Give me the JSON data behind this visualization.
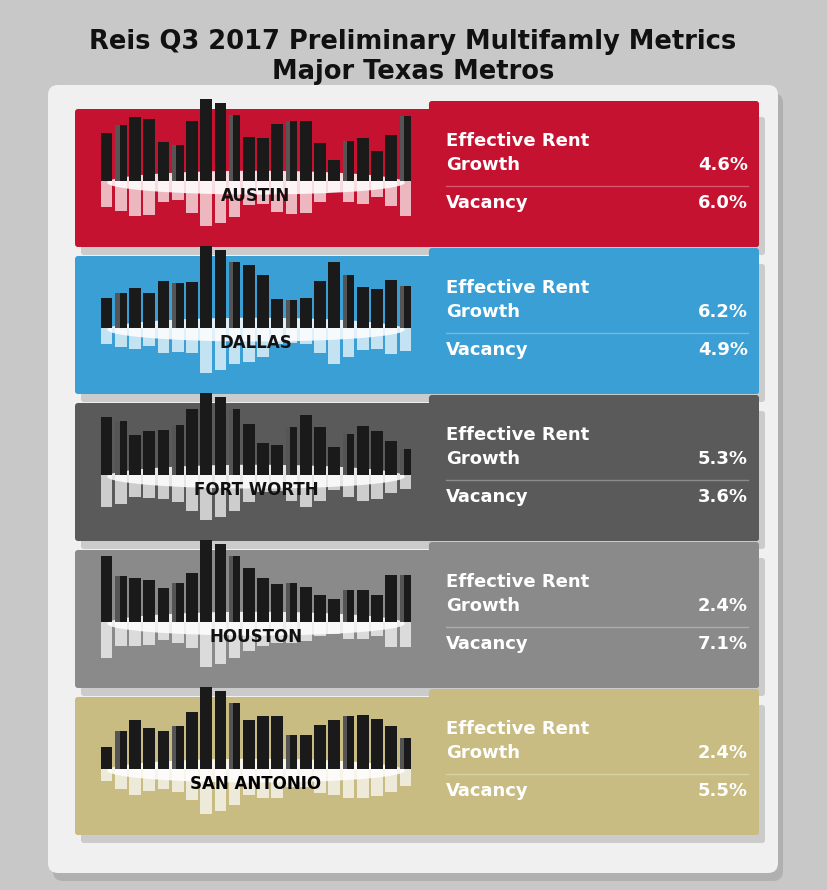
{
  "title_line1": "Reis Q3 2017 Preliminary Multifamly Metrics",
  "title_line2": "Major Texas Metros",
  "fig_bg": "#c8c8c8",
  "card_bg": "#f0f0f0",
  "cities": [
    {
      "name": "AUSTIN",
      "color": "#c41230",
      "text_color": "white",
      "rent_growth": "4.6%",
      "vacancy": "6.0%",
      "skyline_seed": 1
    },
    {
      "name": "DALLAS",
      "color": "#3a9fd4",
      "text_color": "white",
      "rent_growth": "6.2%",
      "vacancy": "4.9%",
      "skyline_seed": 2
    },
    {
      "name": "FORT WORTH",
      "color": "#5a5a5a",
      "text_color": "white",
      "rent_growth": "5.3%",
      "vacancy": "3.6%",
      "skyline_seed": 3
    },
    {
      "name": "HOUSTON",
      "color": "#8a8a8a",
      "text_color": "white",
      "rent_growth": "2.4%",
      "vacancy": "7.1%",
      "skyline_seed": 4
    },
    {
      "name": "SAN ANTONIO",
      "color": "#c8bc82",
      "text_color": "black",
      "rent_growth": "2.4%",
      "vacancy": "5.5%",
      "skyline_seed": 5
    }
  ]
}
